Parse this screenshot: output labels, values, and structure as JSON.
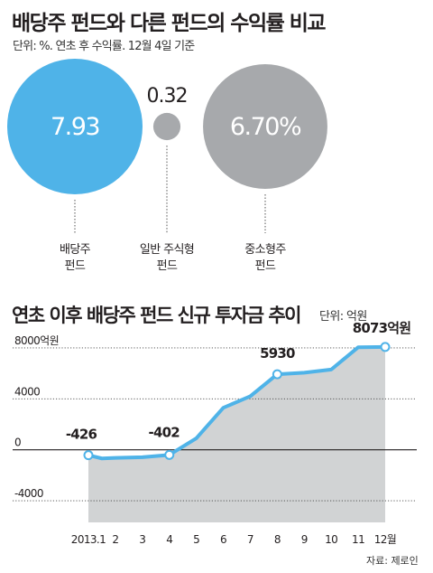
{
  "colors": {
    "accent": "#4fb3e8",
    "gray_bubble": "#a7a9ac",
    "area_fill": "#d1d3d4",
    "line": "#4fb3e8",
    "text": "#231f20"
  },
  "source_text": "자료: 제로인",
  "chart_data": [
    {
      "type": "bubble",
      "title": "배당주 펀드와 다른 펀드의 수익률 비교",
      "subtitle": "단위: %. 연초 후 수익률. 12월 4일 기준",
      "items": [
        {
          "label_lines": [
            "배당주",
            "펀드"
          ],
          "value": 7.93,
          "value_text": "7.93",
          "color": "#4fb3e8",
          "label_inside": true
        },
        {
          "label_lines": [
            "일반 주식형",
            "펀드"
          ],
          "value": 0.32,
          "value_text": "0.32",
          "color": "#a7a9ac",
          "label_inside": false
        },
        {
          "label_lines": [
            "중소형주",
            "펀드"
          ],
          "value": 6.7,
          "value_text": "6.70%",
          "color": "#a7a9ac",
          "label_inside": true
        }
      ]
    },
    {
      "type": "area",
      "title": "연초 이후 배당주 펀드 신규 투자금 추이",
      "unit": "단위: 억원",
      "x": [
        1,
        1.5,
        2,
        3,
        4,
        5,
        6,
        7,
        8,
        9,
        10,
        11,
        12
      ],
      "y": [
        -426,
        -680,
        -640,
        -580,
        -402,
        900,
        3300,
        4200,
        5930,
        6050,
        6300,
        8050,
        8073
      ],
      "categories": [
        "2013.1",
        "2",
        "3",
        "4",
        "5",
        "6",
        "7",
        "8",
        "9",
        "10",
        "11",
        "12월"
      ],
      "yticks": [
        8000,
        4000,
        0,
        -4000
      ],
      "ytick_labels": [
        "8000억원",
        "4000",
        "0",
        "-4000"
      ],
      "ylim": [
        -5700,
        9200
      ],
      "xlim": [
        1,
        12
      ],
      "callouts": [
        {
          "x": 1,
          "y": -426,
          "text": "-426"
        },
        {
          "x": 4,
          "y": -402,
          "text": "-402"
        },
        {
          "x": 8,
          "y": 5930,
          "text": "5930"
        },
        {
          "x": 12,
          "y": 8073,
          "text": "8073억원"
        }
      ]
    }
  ]
}
